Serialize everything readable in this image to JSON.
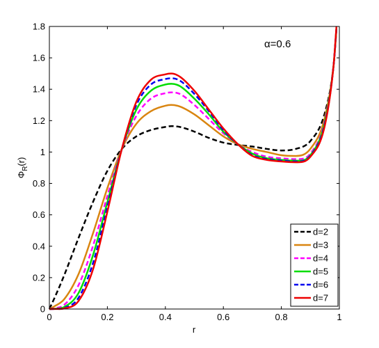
{
  "chart_data": {
    "type": "line",
    "title": "",
    "xlabel": "r",
    "ylabel_main": "Φ",
    "ylabel_sub": "R",
    "ylabel_suffix": "(r)",
    "annotation": "α=0.6",
    "xlim": [
      0,
      1
    ],
    "ylim": [
      0,
      1.8
    ],
    "xticks": [
      0,
      0.2,
      0.4,
      0.6,
      0.8,
      1
    ],
    "xtick_labels": [
      "0",
      "0.2",
      "0.4",
      "0.6",
      "0.8",
      "1"
    ],
    "yticks": [
      0,
      0.2,
      0.4,
      0.6,
      0.8,
      1,
      1.2,
      1.4,
      1.6,
      1.8
    ],
    "ytick_labels": [
      "0",
      "0.2",
      "0.4",
      "0.6",
      "0.8",
      "1",
      "1.2",
      "1.4",
      "1.6",
      "1.8"
    ],
    "grid": false,
    "legend_position": "bottom-right",
    "x": [
      0,
      0.02,
      0.05,
      0.1,
      0.15,
      0.2,
      0.25,
      0.3,
      0.35,
      0.4,
      0.42,
      0.45,
      0.5,
      0.55,
      0.6,
      0.65,
      0.7,
      0.75,
      0.8,
      0.85,
      0.9,
      0.95,
      0.98,
      0.99
    ],
    "series": [
      {
        "name": "d=2",
        "color": "#000000",
        "dash": true,
        "values": [
          0.0,
          0.08,
          0.21,
          0.45,
          0.68,
          0.88,
          1.02,
          1.1,
          1.14,
          1.16,
          1.165,
          1.16,
          1.13,
          1.09,
          1.06,
          1.045,
          1.035,
          1.02,
          1.01,
          1.02,
          1.07,
          1.25,
          1.55,
          1.78
        ]
      },
      {
        "name": "d=3",
        "color": "#D98510",
        "dash": false,
        "values": [
          0.0,
          0.02,
          0.06,
          0.22,
          0.48,
          0.77,
          1.02,
          1.18,
          1.26,
          1.295,
          1.3,
          1.29,
          1.24,
          1.17,
          1.1,
          1.05,
          1.02,
          1.0,
          0.98,
          0.975,
          1.02,
          1.22,
          1.55,
          1.78
        ]
      },
      {
        "name": "d=4",
        "color": "#FF00FF",
        "dash": true,
        "values": [
          0.0,
          0.005,
          0.025,
          0.15,
          0.4,
          0.72,
          1.02,
          1.23,
          1.34,
          1.375,
          1.38,
          1.37,
          1.3,
          1.21,
          1.12,
          1.05,
          1.0,
          0.97,
          0.96,
          0.955,
          0.99,
          1.2,
          1.55,
          1.79
        ]
      },
      {
        "name": "d=5",
        "color": "#00DD00",
        "dash": false,
        "values": [
          0.0,
          0.002,
          0.012,
          0.1,
          0.34,
          0.68,
          1.02,
          1.27,
          1.39,
          1.43,
          1.435,
          1.42,
          1.34,
          1.24,
          1.13,
          1.05,
          0.99,
          0.96,
          0.95,
          0.945,
          0.98,
          1.19,
          1.55,
          1.79
        ]
      },
      {
        "name": "d=6",
        "color": "#0000EE",
        "dash": true,
        "values": [
          0.0,
          0.001,
          0.006,
          0.07,
          0.29,
          0.65,
          1.02,
          1.3,
          1.43,
          1.465,
          1.47,
          1.455,
          1.37,
          1.26,
          1.14,
          1.05,
          0.98,
          0.955,
          0.945,
          0.94,
          0.975,
          1.18,
          1.55,
          1.79
        ]
      },
      {
        "name": "d=7",
        "color": "#EE0000",
        "dash": false,
        "values": [
          0.0,
          0.0005,
          0.003,
          0.05,
          0.25,
          0.62,
          1.02,
          1.32,
          1.46,
          1.495,
          1.5,
          1.48,
          1.39,
          1.27,
          1.15,
          1.05,
          0.975,
          0.95,
          0.94,
          0.935,
          0.97,
          1.17,
          1.55,
          1.8
        ]
      }
    ]
  }
}
